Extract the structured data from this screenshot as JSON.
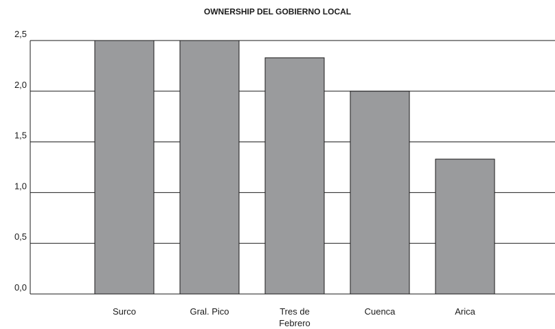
{
  "chart_data": {
    "type": "bar",
    "title": "OWNERSHIP DEL GOBIERNO LOCAL",
    "categories": [
      "Surco",
      "Gral. Pico",
      "Tres de Febrero",
      "Cuenca",
      "Arica"
    ],
    "category_lines": [
      [
        "Surco"
      ],
      [
        "Gral. Pico"
      ],
      [
        "Tres de",
        "Febrero"
      ],
      [
        "Cuenca"
      ],
      [
        "Arica"
      ]
    ],
    "values": [
      2.5,
      2.5,
      2.33,
      2.0,
      1.33
    ],
    "ylim": [
      0,
      2.5
    ],
    "yticks": [
      0,
      0.5,
      1.0,
      1.5,
      2.0,
      2.5
    ],
    "ytick_labels": [
      "0,0",
      "0,5",
      "1,0",
      "1,5",
      "2,0",
      "2,5"
    ],
    "xlabel": "",
    "ylabel": "",
    "grid": true,
    "bar_color": "#9a9b9d",
    "bar_edge_color": "#1a1a1a",
    "line_color": "#1a1a1a"
  }
}
